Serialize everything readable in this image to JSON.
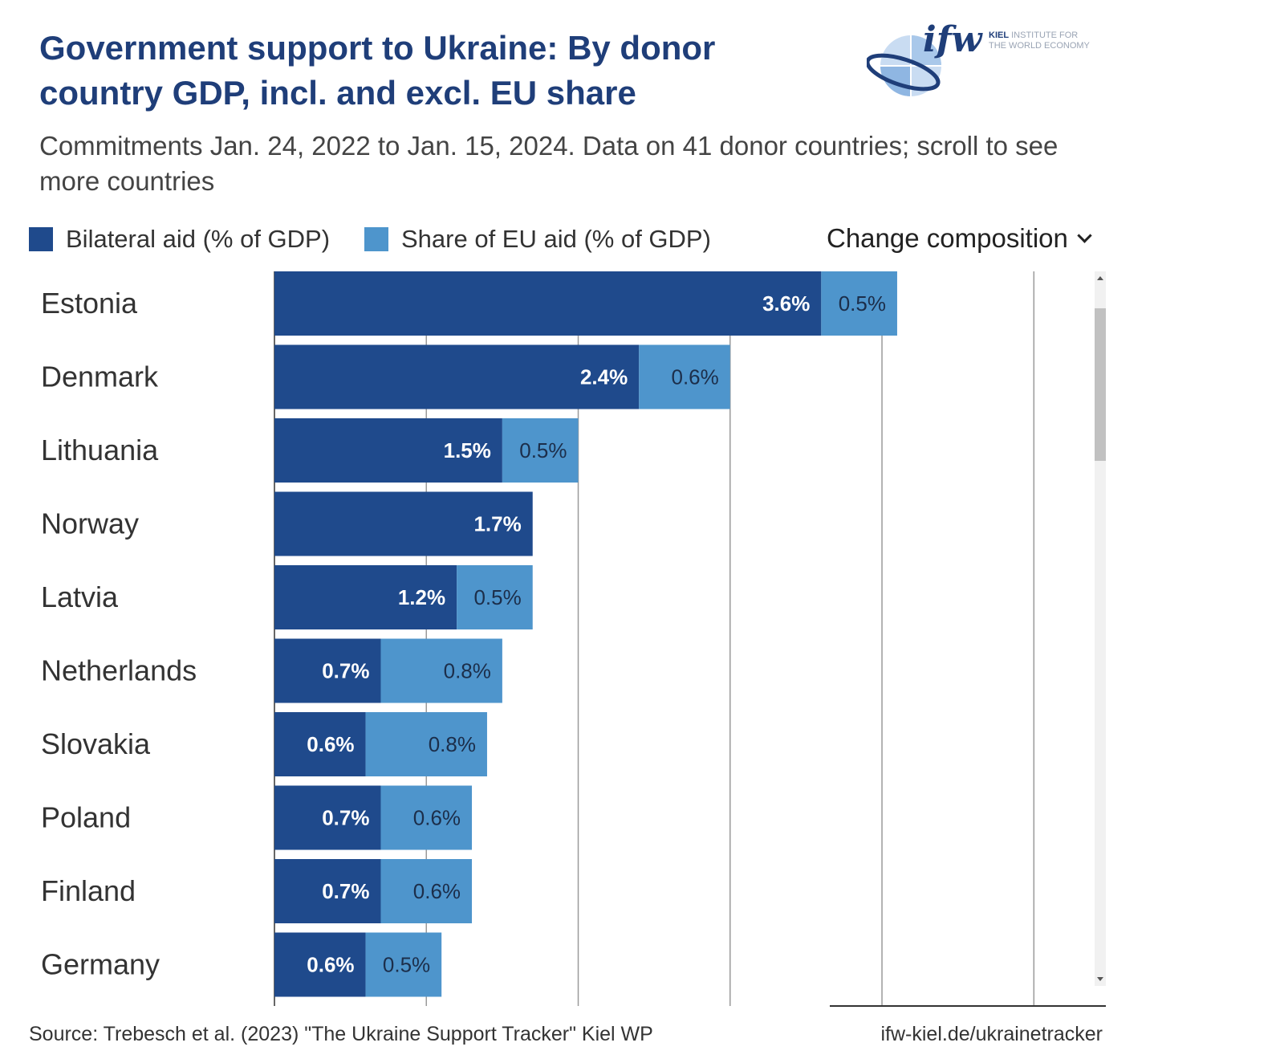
{
  "header": {
    "title": "Government support to Ukraine: By donor country GDP, incl. and excl. EU share",
    "subtitle": "Commitments Jan. 24, 2022 to Jan. 15, 2024. Data on 41 donor countries; scroll to see more countries"
  },
  "logo": {
    "mark": "ifw",
    "line1_bold": "KIEL",
    "line1_rest": "INSTITUTE FOR",
    "line2": "THE WORLD ECONOMY"
  },
  "legend": {
    "bilateral": "Bilateral aid (% of GDP)",
    "eu": "Share of EU aid (% of GDP)"
  },
  "controls": {
    "composition": "Change composition"
  },
  "colors": {
    "bilateral": "#1f4a8c",
    "eu": "#4e95cc",
    "title": "#1f3e79",
    "grid": "#9a9a9a"
  },
  "footer": {
    "source": "Source: Trebesch et al. (2023) \"The Ukraine Support Tracker\" Kiel WP",
    "url": "ifw-kiel.de/ukrainetracker"
  },
  "chart_data": {
    "type": "bar",
    "orientation": "horizontal",
    "stacked": true,
    "categories": [
      "Estonia",
      "Denmark",
      "Lithuania",
      "Norway",
      "Latvia",
      "Netherlands",
      "Slovakia",
      "Poland",
      "Finland",
      "Germany"
    ],
    "series": [
      {
        "name": "Bilateral aid (% of GDP)",
        "values": [
          3.6,
          2.4,
          1.5,
          1.7,
          1.2,
          0.7,
          0.6,
          0.7,
          0.7,
          0.6
        ],
        "labels": [
          "3.6%",
          "2.4%",
          "1.5%",
          "1.7%",
          "1.2%",
          "0.7%",
          "0.6%",
          "0.7%",
          "0.7%",
          "0.6%"
        ]
      },
      {
        "name": "Share of EU aid (% of GDP)",
        "values": [
          0.5,
          0.6,
          0.5,
          0,
          0.5,
          0.8,
          0.8,
          0.6,
          0.6,
          0.5
        ],
        "labels": [
          "0.5%",
          "0.6%",
          "0.5%",
          "",
          "0.5%",
          "0.8%",
          "0.8%",
          "0.6%",
          "0.6%",
          "0.5%"
        ]
      }
    ],
    "xlim": [
      0,
      5.4
    ],
    "gridlines": [
      1,
      2,
      3,
      4,
      5
    ],
    "legend_position": "top-left"
  }
}
